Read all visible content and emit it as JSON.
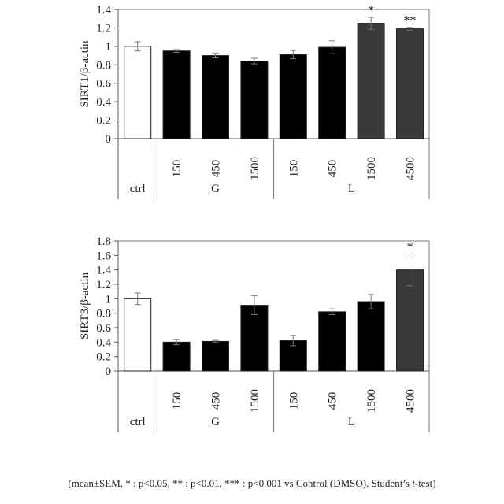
{
  "chart_data": [
    {
      "type": "bar",
      "ylabel": "SIRT1/β-actin",
      "ylim": [
        0,
        1.4
      ],
      "yticks": [
        "0",
        "0.2",
        "0.4",
        "0.6",
        "0.8",
        "1",
        "1.2",
        "1.4"
      ],
      "categories": [
        "ctrl",
        "150",
        "450",
        "1500",
        "150",
        "450",
        "1500",
        "4500"
      ],
      "groups": [
        {
          "label": "ctrl",
          "start": 0,
          "end": 0
        },
        {
          "label": "G",
          "start": 1,
          "end": 3
        },
        {
          "label": "L",
          "start": 4,
          "end": 7
        }
      ],
      "values": [
        1.0,
        0.95,
        0.9,
        0.84,
        0.91,
        0.99,
        1.25,
        1.19
      ],
      "errors": [
        0.05,
        0.015,
        0.025,
        0.03,
        0.045,
        0.07,
        0.065,
        0.015
      ],
      "significance": [
        "",
        "",
        "",
        "",
        "",
        "",
        "*",
        "**"
      ],
      "bar_colors": [
        "#ffffff",
        "#000000",
        "#000000",
        "#000000",
        "#000000",
        "#000000",
        "#3a3a3a",
        "#3a3a3a"
      ],
      "grid": false
    },
    {
      "type": "bar",
      "ylabel": "SIRT3/β-actin",
      "ylim": [
        0,
        1.8
      ],
      "yticks": [
        "0",
        "0.2",
        "0.4",
        "0.6",
        "0.8",
        "1",
        "1.2",
        "1.4",
        "1.6",
        "1.8"
      ],
      "categories": [
        "ctrl",
        "150",
        "450",
        "1500",
        "150",
        "450",
        "1500",
        "4500"
      ],
      "groups": [
        {
          "label": "ctrl",
          "start": 0,
          "end": 0
        },
        {
          "label": "G",
          "start": 1,
          "end": 3
        },
        {
          "label": "L",
          "start": 4,
          "end": 7
        }
      ],
      "values": [
        1.0,
        0.4,
        0.41,
        0.91,
        0.42,
        0.82,
        0.96,
        1.4
      ],
      "errors": [
        0.08,
        0.035,
        0.015,
        0.13,
        0.07,
        0.04,
        0.1,
        0.22
      ],
      "significance": [
        "",
        "",
        "",
        "",
        "",
        "",
        "",
        "*"
      ],
      "bar_colors": [
        "#ffffff",
        "#000000",
        "#000000",
        "#000000",
        "#000000",
        "#000000",
        "#000000",
        "#3a3a3a"
      ],
      "grid": false
    }
  ],
  "footnote": {
    "part1": "(mean±SEM,    * : p<0.05, ** : p<0.01, *** : p<0.001 vs Control (DMSO), Student’s ",
    "italic": "t",
    "part2": "-test)"
  }
}
